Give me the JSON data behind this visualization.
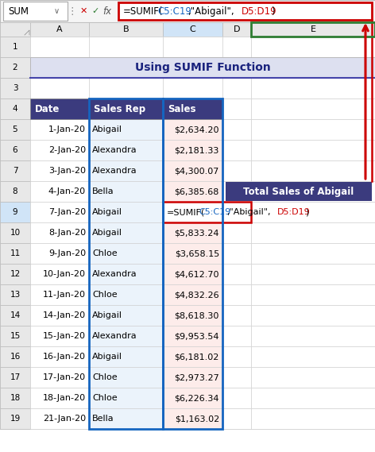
{
  "title": "Using SUMIF Function",
  "formula_bar_name": "SUM",
  "header_bg": "#3B3B7E",
  "header_fg": "#FFFFFF",
  "title_bg": "#DDE0F0",
  "title_fg": "#1A237E",
  "grid_color": "#C0C0C0",
  "formula_box_color": "#CC0000",
  "col_header_bg": "#E8E8E8",
  "col_header_selected_bg": "#C8D8F0",
  "row_header_bg": "#E8E8E8",
  "annotation_bg": "#3B3B7E",
  "annotation_fg": "#FFFFFF",
  "annotation_text": "Total Sales of Abigail",
  "col_c_bg": "#EBF3FB",
  "col_d_bg": "#FDECEA",
  "arrow_color": "#CC0000",
  "rows": [
    {
      "date": "1-Jan-20",
      "rep": "Abigail",
      "sales": "$2,634.20"
    },
    {
      "date": "2-Jan-20",
      "rep": "Alexandra",
      "sales": "$2,181.33"
    },
    {
      "date": "3-Jan-20",
      "rep": "Alexandra",
      "sales": "$4,300.07"
    },
    {
      "date": "4-Jan-20",
      "rep": "Bella",
      "sales": "$6,385.68"
    },
    {
      "date": "7-Jan-20",
      "rep": "Abigail",
      "sales": null
    },
    {
      "date": "8-Jan-20",
      "rep": "Abigail",
      "sales": "$5,833.24"
    },
    {
      "date": "9-Jan-20",
      "rep": "Chloe",
      "sales": "$3,658.15"
    },
    {
      "date": "10-Jan-20",
      "rep": "Alexandra",
      "sales": "$4,612.70"
    },
    {
      "date": "11-Jan-20",
      "rep": "Chloe",
      "sales": "$4,832.26"
    },
    {
      "date": "14-Jan-20",
      "rep": "Abigail",
      "sales": "$8,618.30"
    },
    {
      "date": "15-Jan-20",
      "rep": "Alexandra",
      "sales": "$9,953.54"
    },
    {
      "date": "16-Jan-20",
      "rep": "Abigail",
      "sales": "$6,181.02"
    },
    {
      "date": "17-Jan-20",
      "rep": "Chloe",
      "sales": "$2,973.27"
    },
    {
      "date": "18-Jan-20",
      "rep": "Chloe",
      "sales": "$6,226.34"
    },
    {
      "date": "21-Jan-20",
      "rep": "Bella",
      "sales": "$1,163.02"
    }
  ]
}
